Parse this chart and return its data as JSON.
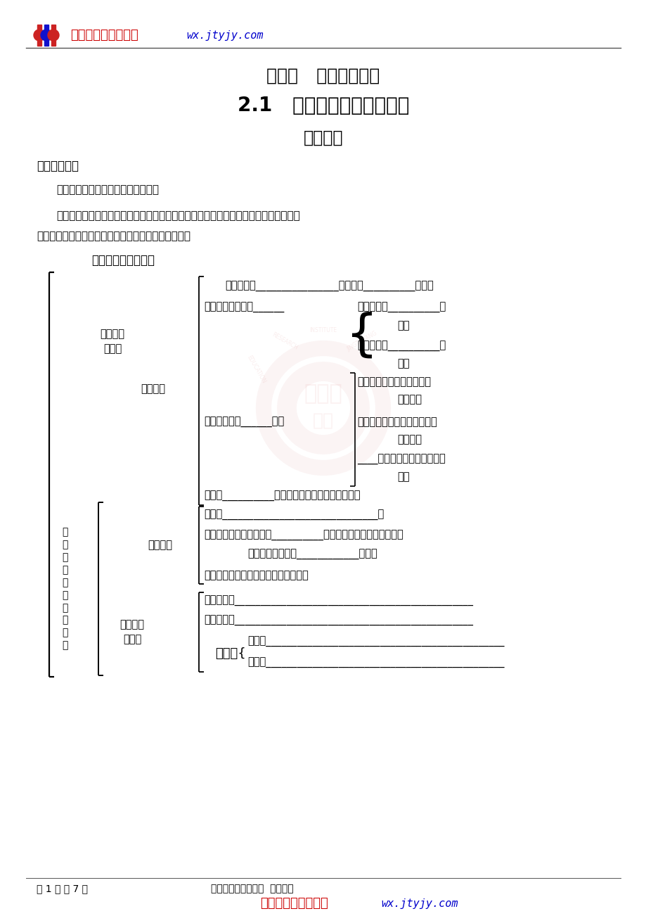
{
  "bg_color": "#ffffff",
  "header_site_red": "金太阳新课标资源网",
  "header_site_blue": "wx.jtyjy.com",
  "title1": "第二章   地球上的大气",
  "title2": "2.1   冷热不均引起大气运动",
  "title3": "学案导学",
  "section1_header": "一、课标解析",
  "para1": "课标：运用图表说明大气受热过程。",
  "para2_line1": "知道这里的「大气」仅指低层大气。理解大气的热量来源和大气的受热过程，掌握大气",
  "para2_line2": "运动的主要原因、热力环流的形成和大气的水平运动。",
  "section2_header": "二、主干知识点梁理",
  "row_nly": "能量来源：________________（特点：__________辐射）",
  "row_dqtyr": "大气对太阳辐射的______",
  "row_zyxs1": "作用形式：__________、",
  "row_zyxs2": "等。",
  "row_yyys1": "影响因素：__________、",
  "row_yyys2": "等。",
  "row_jbgc": "基本过程",
  "row_dmfs1": "地面辐射：地面吸收大部分",
  "row_dmfs2": "而产生。",
  "row_dqdm": "大气对地面的______作用",
  "row_dqfs1": "大气辐射：大气吸收绝大部分",
  "row_dqfs2": "而产生。",
  "row_blfs1": "____辐射：对地面起到保温作",
  "row_blfs2": "用。",
  "row_jl": "结论：__________是近地面大气主要的直接热源。",
  "row_gn": "概念：______________________________。",
  "row_xc1": "形成：冷热不均引起空气__________的运动，导致同一水平面上的",
  "row_xc2": "差异，形成大气的____________运动。",
  "row_jl2": "举例并图示：城市风、海陆风、山谷风",
  "row_gbyl": "根本原因：______________________________________________",
  "row_zjyl": "直接原因：______________________________________________",
  "row_sl": "受力：______________________________________________",
  "row_fx": "风向：______________________________________________",
  "label_dqsrg": "大气的受\n热过程",
  "label_rlfh": "热力环流",
  "label_dqspyd": "大气的水\n平运动",
  "label_lhbjqdqyd": "冷\n热\n不\n均\n引\n起\n大\n气\n运\n动",
  "label_gkf": "高空风",
  "footer_left": "第 1 页 共 7 页",
  "footer_center": "金太阳教育版权所有  侵权必究",
  "footer_red": "金太阳新课标资源网",
  "footer_blue": "wx.jtyjy.com"
}
